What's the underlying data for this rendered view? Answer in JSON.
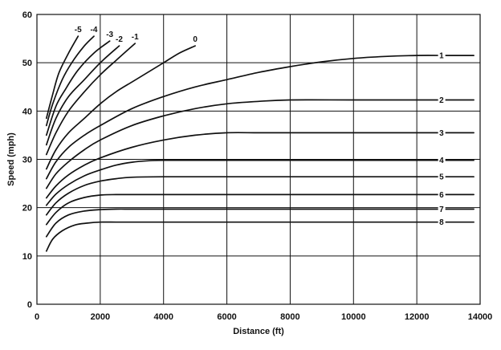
{
  "chart_data": {
    "type": "line",
    "title": "",
    "xlabel": "Distance (ft)",
    "ylabel": "Speed (mph)",
    "xlim": [
      0,
      14000
    ],
    "ylim": [
      0,
      60
    ],
    "xticks": [
      "0",
      "2000",
      "4000",
      "6000",
      "8000",
      "10000",
      "12000",
      "14000"
    ],
    "yticks": [
      "0",
      "10",
      "20",
      "30",
      "40",
      "50",
      "60"
    ],
    "grid": true,
    "series": [
      {
        "name": "-5",
        "x": [
          300,
          500,
          700,
          1000,
          1300
        ],
        "y": [
          38.5,
          43.5,
          48,
          52,
          55.5
        ]
      },
      {
        "name": "-4",
        "x": [
          300,
          500,
          800,
          1100,
          1500,
          1800
        ],
        "y": [
          37,
          41.5,
          46.5,
          50,
          53.5,
          55.5
        ]
      },
      {
        "name": "-3",
        "x": [
          300,
          600,
          900,
          1300,
          1800,
          2300
        ],
        "y": [
          35,
          41,
          44.5,
          48.5,
          52,
          54.5
        ]
      },
      {
        "name": "-2",
        "x": [
          300,
          600,
          1000,
          1500,
          2000,
          2600
        ],
        "y": [
          33,
          38.5,
          43,
          46.5,
          50,
          53.5
        ]
      },
      {
        "name": "-1",
        "x": [
          300,
          600,
          1000,
          1500,
          2000,
          2500,
          3100
        ],
        "y": [
          31,
          35.5,
          40,
          44,
          47.5,
          50.5,
          54
        ]
      },
      {
        "name": "0",
        "x": [
          300,
          600,
          1000,
          1500,
          2000,
          2500,
          3000,
          3500,
          4000,
          4500,
          5000
        ],
        "y": [
          28,
          32,
          35.5,
          38.5,
          41.5,
          44,
          46,
          48,
          50,
          52,
          53.5
        ]
      },
      {
        "name": "1",
        "x": [
          300,
          600,
          1000,
          1500,
          2000,
          3000,
          4000,
          5000,
          6000,
          7000,
          8000,
          9000,
          10000,
          11000,
          12000,
          13000,
          13800
        ],
        "y": [
          26,
          29.5,
          32.5,
          35,
          37,
          40.5,
          43,
          45,
          46.5,
          48,
          49.2,
          50.2,
          50.9,
          51.3,
          51.5,
          51.5,
          51.5
        ]
      },
      {
        "name": "2",
        "x": [
          300,
          600,
          1000,
          1500,
          2000,
          3000,
          4000,
          5000,
          6000,
          7000,
          8000,
          10000,
          12000,
          13800
        ],
        "y": [
          24,
          27,
          29.5,
          32,
          34,
          37,
          39,
          40.5,
          41.5,
          42,
          42.3,
          42.3,
          42.3,
          42.3
        ]
      },
      {
        "name": "3",
        "x": [
          300,
          600,
          1000,
          1500,
          2000,
          3000,
          4000,
          5000,
          6000,
          7000,
          8000,
          10000,
          12000,
          13800
        ],
        "y": [
          22,
          24.5,
          26.8,
          28.8,
          30.3,
          32.5,
          34,
          35,
          35.5,
          35.5,
          35.5,
          35.5,
          35.5,
          35.5
        ]
      },
      {
        "name": "4",
        "x": [
          300,
          600,
          1000,
          1500,
          2000,
          2500,
          3000,
          3500,
          4000,
          6000,
          8000,
          10000,
          12000,
          13800
        ],
        "y": [
          20.5,
          22.8,
          24.8,
          26.6,
          27.8,
          28.8,
          29.4,
          29.7,
          29.8,
          29.8,
          29.8,
          29.8,
          29.8,
          29.8
        ]
      },
      {
        "name": "5",
        "x": [
          300,
          600,
          1000,
          1500,
          2000,
          2500,
          3000,
          4000,
          6000,
          8000,
          10000,
          12000,
          13800
        ],
        "y": [
          18.5,
          21,
          23,
          24.6,
          25.5,
          26,
          26.3,
          26.4,
          26.4,
          26.4,
          26.4,
          26.4,
          26.4
        ]
      },
      {
        "name": "6",
        "x": [
          300,
          600,
          1000,
          1500,
          2000,
          2500,
          3000,
          4000,
          6000,
          8000,
          10000,
          12000,
          13800
        ],
        "y": [
          16.5,
          19,
          21,
          22.1,
          22.6,
          22.7,
          22.7,
          22.7,
          22.7,
          22.7,
          22.7,
          22.7,
          22.7
        ]
      },
      {
        "name": "7",
        "x": [
          300,
          600,
          1000,
          1500,
          2000,
          2500,
          3000,
          4000,
          6000,
          8000,
          10000,
          12000,
          13800
        ],
        "y": [
          14,
          16.8,
          18.5,
          19.3,
          19.6,
          19.7,
          19.7,
          19.7,
          19.7,
          19.7,
          19.7,
          19.7,
          19.7
        ]
      },
      {
        "name": "8",
        "x": [
          300,
          500,
          800,
          1200,
          1600,
          2000,
          2500,
          3000,
          4000,
          6000,
          8000,
          10000,
          12000,
          13800
        ],
        "y": [
          11,
          13.5,
          15.2,
          16.4,
          16.8,
          17,
          17,
          17,
          17,
          17,
          17,
          17,
          17,
          17
        ]
      }
    ]
  }
}
